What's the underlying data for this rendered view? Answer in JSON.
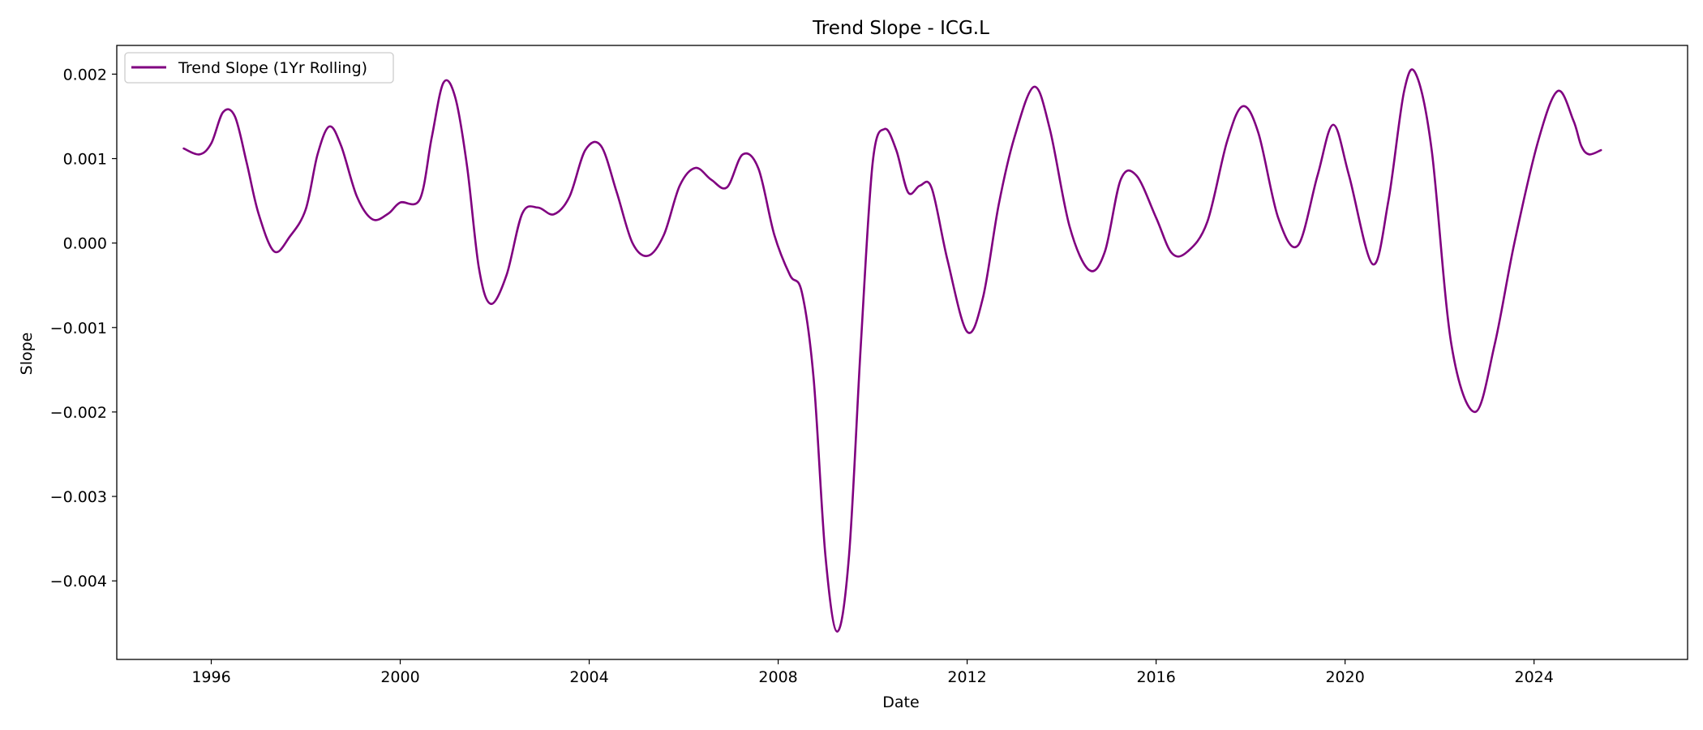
{
  "chart_data": {
    "type": "line",
    "title": "Trend Slope - ICG.L",
    "xlabel": "Date",
    "ylabel": "Slope",
    "x_ticks": [
      "1996",
      "2000",
      "2004",
      "2008",
      "2012",
      "2016",
      "2020",
      "2024"
    ],
    "y_ticks": [
      "0.002",
      "0.001",
      "0.000",
      "−0.001",
      "−0.002",
      "−0.003",
      "−0.004"
    ],
    "xlim": [
      "1994-01-01",
      "2027-04-01"
    ],
    "ylim": [
      -0.00493,
      0.00234
    ],
    "grid": false,
    "legend_position": "upper-left",
    "colors": {
      "series": "#800080"
    },
    "series": [
      {
        "name": "Trend Slope (1Yr Rolling)",
        "points": [
          [
            "1995-06-01",
            0.00112
          ],
          [
            "1995-10-01",
            0.00105
          ],
          [
            "1996-01-01",
            0.00118
          ],
          [
            "1996-04-01",
            0.00155
          ],
          [
            "1996-07-01",
            0.0015
          ],
          [
            "1996-10-01",
            0.00095
          ],
          [
            "1997-01-01",
            0.00035
          ],
          [
            "1997-05-01",
            -0.0001
          ],
          [
            "1997-09-01",
            8e-05
          ],
          [
            "1998-01-01",
            0.0004
          ],
          [
            "1998-04-01",
            0.00105
          ],
          [
            "1998-07-01",
            0.00138
          ],
          [
            "1998-10-01",
            0.00115
          ],
          [
            "1999-02-01",
            0.00055
          ],
          [
            "1999-06-01",
            0.00028
          ],
          [
            "1999-10-01",
            0.00035
          ],
          [
            "2000-01-01",
            0.00048
          ],
          [
            "2000-06-01",
            0.00052
          ],
          [
            "2000-09-01",
            0.00125
          ],
          [
            "2000-12-01",
            0.0019
          ],
          [
            "2001-03-01",
            0.00172
          ],
          [
            "2001-06-01",
            0.0009
          ],
          [
            "2001-09-01",
            -0.0003
          ],
          [
            "2001-12-01",
            -0.00072
          ],
          [
            "2002-04-01",
            -0.00038
          ],
          [
            "2002-08-01",
            0.00035
          ],
          [
            "2002-12-01",
            0.00042
          ],
          [
            "2003-04-01",
            0.00034
          ],
          [
            "2003-08-01",
            0.00055
          ],
          [
            "2003-12-01",
            0.0011
          ],
          [
            "2004-04-01",
            0.00115
          ],
          [
            "2004-08-01",
            0.0006
          ],
          [
            "2004-12-01",
            0.0
          ],
          [
            "2005-04-01",
            -0.00015
          ],
          [
            "2005-08-01",
            0.0001
          ],
          [
            "2005-12-01",
            0.00068
          ],
          [
            "2006-04-01",
            0.00089
          ],
          [
            "2006-08-01",
            0.00075
          ],
          [
            "2006-12-01",
            0.00066
          ],
          [
            "2007-04-01",
            0.00105
          ],
          [
            "2007-08-01",
            0.00088
          ],
          [
            "2007-12-01",
            0.0001
          ],
          [
            "2008-04-01",
            -0.00038
          ],
          [
            "2008-07-01",
            -0.00058
          ],
          [
            "2008-10-01",
            -0.0016
          ],
          [
            "2009-01-01",
            -0.0037
          ],
          [
            "2009-04-01",
            -0.0046
          ],
          [
            "2009-07-01",
            -0.0037
          ],
          [
            "2009-10-01",
            -0.0012
          ],
          [
            "2010-01-01",
            0.00095
          ],
          [
            "2010-04-01",
            0.00135
          ],
          [
            "2010-07-01",
            0.0011
          ],
          [
            "2010-10-01",
            0.0006
          ],
          [
            "2011-01-01",
            0.00068
          ],
          [
            "2011-04-01",
            0.00065
          ],
          [
            "2011-08-01",
            -0.0002
          ],
          [
            "2012-01-01",
            -0.00105
          ],
          [
            "2012-05-01",
            -0.00065
          ],
          [
            "2012-09-01",
            0.00045
          ],
          [
            "2013-01-01",
            0.00125
          ],
          [
            "2013-06-01",
            0.00185
          ],
          [
            "2013-10-01",
            0.00135
          ],
          [
            "2014-03-01",
            0.0002
          ],
          [
            "2014-08-01",
            -0.00032
          ],
          [
            "2014-12-01",
            -0.0001
          ],
          [
            "2015-04-01",
            0.00075
          ],
          [
            "2015-08-01",
            0.0008
          ],
          [
            "2016-01-01",
            0.0003
          ],
          [
            "2016-05-01",
            -0.00012
          ],
          [
            "2016-09-01",
            -0.0001
          ],
          [
            "2017-02-01",
            0.00025
          ],
          [
            "2017-07-01",
            0.0012
          ],
          [
            "2017-11-01",
            0.00162
          ],
          [
            "2018-03-01",
            0.0013
          ],
          [
            "2018-08-01",
            0.0003
          ],
          [
            "2019-01-01",
            -3e-05
          ],
          [
            "2019-06-01",
            0.0008
          ],
          [
            "2019-10-01",
            0.0014
          ],
          [
            "2020-02-01",
            0.0008
          ],
          [
            "2020-08-01",
            -0.00025
          ],
          [
            "2020-12-01",
            0.0005
          ],
          [
            "2021-04-01",
            0.0018
          ],
          [
            "2021-07-01",
            0.002
          ],
          [
            "2021-11-01",
            0.0011
          ],
          [
            "2022-04-01",
            -0.0012
          ],
          [
            "2022-10-01",
            -0.002
          ],
          [
            "2023-03-01",
            -0.0012
          ],
          [
            "2023-08-01",
            0.0
          ],
          [
            "2024-02-01",
            0.0012
          ],
          [
            "2024-07-01",
            0.0018
          ],
          [
            "2024-11-01",
            0.00145
          ],
          [
            "2025-01-01",
            0.00115
          ],
          [
            "2025-03-01",
            0.00105
          ],
          [
            "2025-06-01",
            0.0011
          ]
        ]
      }
    ]
  }
}
